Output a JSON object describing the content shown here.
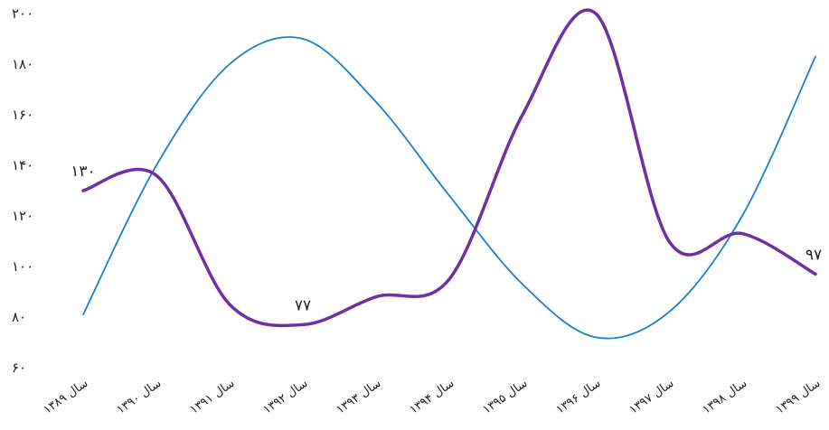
{
  "chart_data": {
    "type": "line",
    "categories": [
      "سال ۱۳۸۹",
      "سال ۱۳۹۰",
      "سال ۱۳۹۱",
      "سال ۱۳۹۲",
      "سال ۱۳۹۳",
      "سال ۱۳۹۴",
      "سال ۱۳۹۵",
      "سال ۱۳۹۶",
      "سال ۱۳۹۷",
      "سال ۱۳۹۸",
      "سال ۱۳۹۹"
    ],
    "y_ticks": [
      {
        "value": 60,
        "label": "۶۰"
      },
      {
        "value": 80,
        "label": "۸۰"
      },
      {
        "value": 100,
        "label": "۱۰۰"
      },
      {
        "value": 120,
        "label": "۱۲۰"
      },
      {
        "value": 140,
        "label": "۱۴۰"
      },
      {
        "value": 160,
        "label": "۱۶۰"
      },
      {
        "value": 180,
        "label": "۱۸۰"
      },
      {
        "value": 200,
        "label": "۲۰۰"
      }
    ],
    "ylim": [
      60,
      200
    ],
    "grid": false,
    "series": [
      {
        "color": "#1a7fc8",
        "values": [
          81,
          140,
          180,
          190,
          165,
          128,
          93,
          72,
          82,
          120,
          183
        ]
      },
      {
        "color": "#7030a0",
        "values": [
          130,
          136,
          85,
          77,
          88,
          95,
          160,
          200,
          110,
          113,
          97
        ],
        "labels": [
          {
            "index": 0,
            "text": "۱۳۰"
          },
          {
            "index": 3,
            "text": "۷۷"
          },
          {
            "index": 10,
            "text": "۹۷"
          }
        ]
      }
    ]
  }
}
